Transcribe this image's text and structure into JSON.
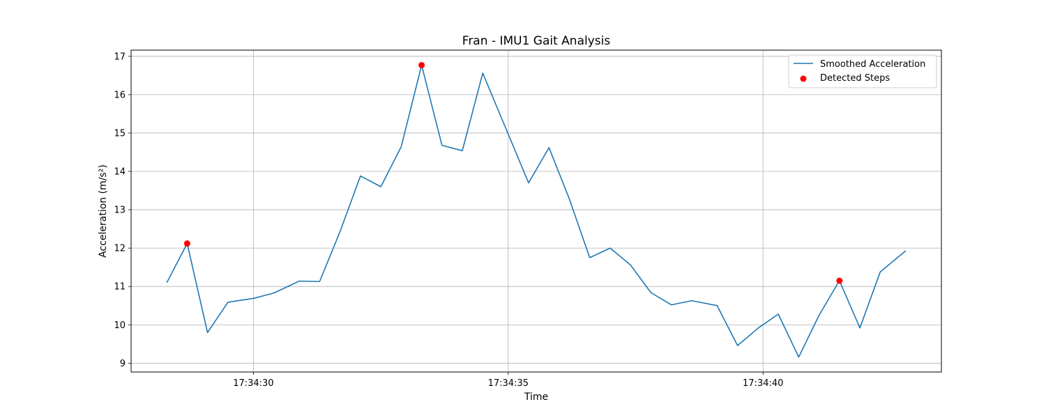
{
  "chart_data": {
    "type": "line",
    "title": "Fran - IMU1 Gait Analysis",
    "xlabel": "Time",
    "ylabel": "Acceleration (m/s²)",
    "x_ticks": [
      "17:34:30",
      "17:34:35",
      "17:34:40"
    ],
    "x_tick_seconds": [
      30,
      35,
      40
    ],
    "xlim_seconds": [
      27.6,
      43.5
    ],
    "y_ticks": [
      "9",
      "10",
      "11",
      "12",
      "13",
      "14",
      "15",
      "16",
      "17"
    ],
    "ylim": [
      8.77,
      17.16
    ],
    "grid": true,
    "legend_position": "top-right",
    "series": [
      {
        "name": "Smoothed Acceleration",
        "color": "#1f77b4",
        "x_seconds": [
          28.3,
          28.7,
          29.1,
          29.5,
          30.0,
          30.4,
          30.9,
          31.3,
          31.7,
          32.1,
          32.5,
          32.9,
          33.3,
          33.7,
          34.1,
          34.5,
          34.9,
          35.4,
          35.8,
          36.2,
          36.6,
          37.0,
          37.4,
          37.8,
          38.2,
          38.6,
          39.1,
          39.5,
          39.9,
          40.3,
          40.7,
          41.1,
          41.5,
          41.9,
          42.3,
          42.8
        ],
        "values": [
          11.1,
          12.12,
          9.8,
          10.59,
          10.69,
          10.83,
          11.14,
          11.13,
          12.43,
          13.88,
          13.6,
          14.64,
          16.77,
          14.68,
          14.54,
          16.56,
          15.29,
          13.7,
          14.62,
          13.28,
          11.75,
          12.0,
          11.56,
          10.84,
          10.52,
          10.63,
          10.5,
          9.46,
          9.91,
          10.28,
          9.16,
          10.25,
          11.15,
          9.92,
          11.38,
          11.93
        ]
      },
      {
        "name": "Detected Steps",
        "type": "scatter",
        "color": "#ff0000",
        "x_seconds": [
          28.7,
          33.3,
          41.5
        ],
        "values": [
          12.12,
          16.77,
          11.15
        ]
      }
    ]
  }
}
